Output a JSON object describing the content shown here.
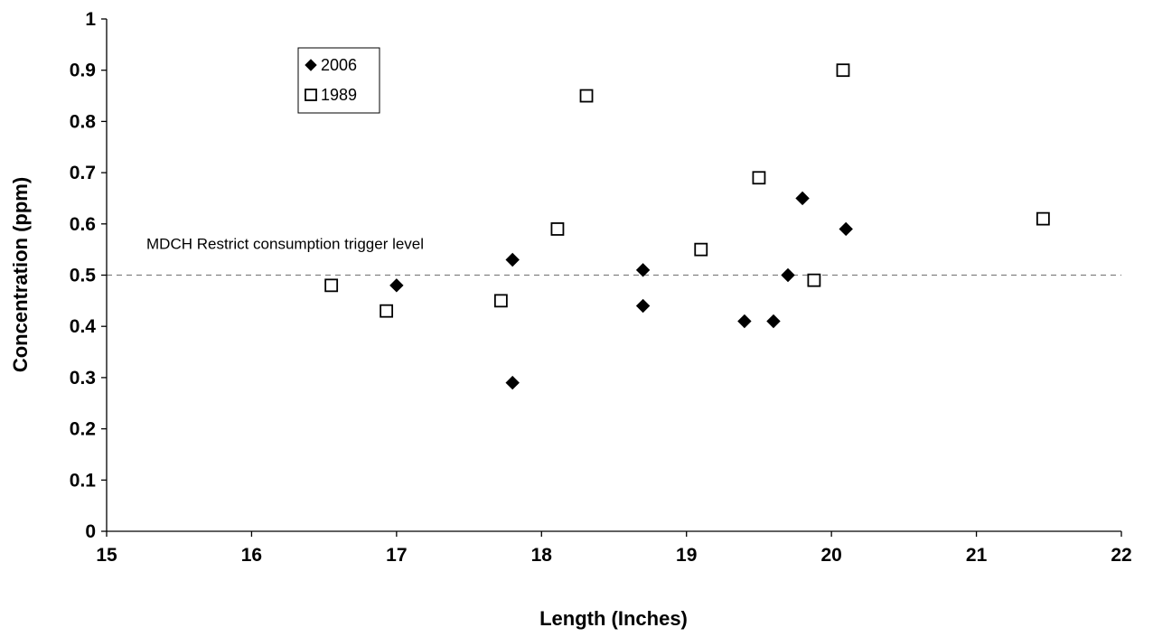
{
  "chart_data": {
    "type": "scatter",
    "title": "",
    "xlabel": "Length (Inches)",
    "ylabel": "Concentration (ppm)",
    "xlim": [
      15,
      22
    ],
    "ylim": [
      0,
      1
    ],
    "x_ticks": [
      15,
      16,
      17,
      18,
      19,
      20,
      21,
      22
    ],
    "y_ticks": [
      0,
      0.1,
      0.2,
      0.3,
      0.4,
      0.5,
      0.6,
      0.7,
      0.8,
      0.9,
      1
    ],
    "x_tick_labels": [
      "15",
      "16",
      "17",
      "18",
      "19",
      "20",
      "21",
      "22"
    ],
    "y_tick_labels": [
      "0",
      "0.1",
      "0.2",
      "0.3",
      "0.4",
      "0.5",
      "0.6",
      "0.7",
      "0.8",
      "0.9",
      "1"
    ],
    "grid": false,
    "legend_position": "top-left",
    "reference_line": {
      "y": 0.5,
      "label": "MDCH Restrict consumption trigger level",
      "style": "dashed",
      "color": "#808080"
    },
    "series": [
      {
        "name": "2006",
        "marker": "filled-diamond",
        "color": "#000000",
        "points": [
          {
            "x": 17.0,
            "y": 0.48
          },
          {
            "x": 17.8,
            "y": 0.53
          },
          {
            "x": 17.8,
            "y": 0.29
          },
          {
            "x": 18.7,
            "y": 0.51
          },
          {
            "x": 18.7,
            "y": 0.44
          },
          {
            "x": 19.4,
            "y": 0.41
          },
          {
            "x": 19.6,
            "y": 0.41
          },
          {
            "x": 19.7,
            "y": 0.5
          },
          {
            "x": 19.8,
            "y": 0.65
          },
          {
            "x": 20.1,
            "y": 0.59
          }
        ]
      },
      {
        "name": "1989",
        "marker": "open-square",
        "color": "#000000",
        "points": [
          {
            "x": 16.55,
            "y": 0.48
          },
          {
            "x": 16.93,
            "y": 0.43
          },
          {
            "x": 17.72,
            "y": 0.45
          },
          {
            "x": 18.11,
            "y": 0.59
          },
          {
            "x": 18.31,
            "y": 0.85
          },
          {
            "x": 19.1,
            "y": 0.55
          },
          {
            "x": 19.5,
            "y": 0.69
          },
          {
            "x": 19.88,
            "y": 0.49
          },
          {
            "x": 20.08,
            "y": 0.9
          },
          {
            "x": 21.46,
            "y": 0.61
          }
        ]
      }
    ]
  }
}
